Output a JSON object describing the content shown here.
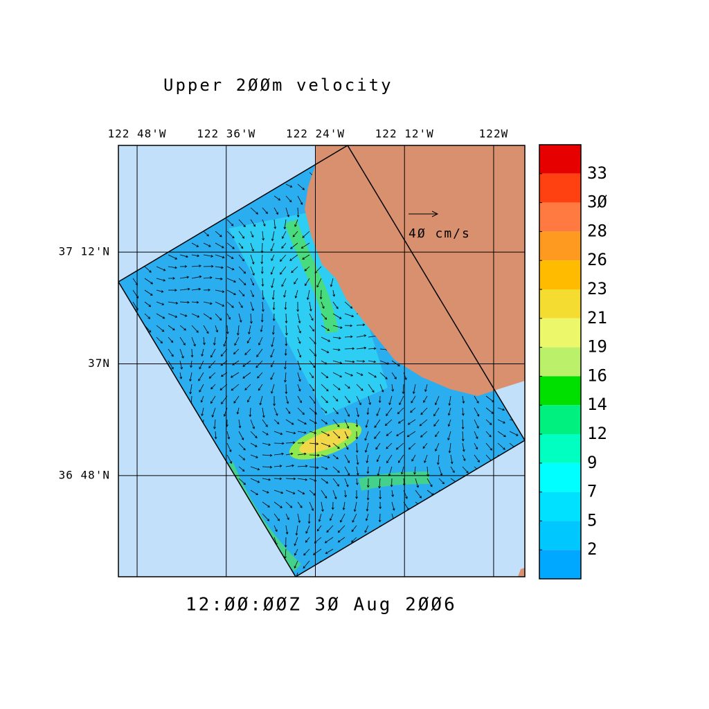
{
  "map": {
    "title": "Upper 2ØØm velocity",
    "timestamp": "12:ØØ:ØØZ  3Ø Aug 2ØØ6",
    "scale_label": "4Ø cm/s",
    "lon_range": [
      -122.842,
      -121.93
    ],
    "lat_range": [
      36.619,
      37.391
    ],
    "lon_ticks": [
      {
        "value": -122.8,
        "label": "122 48'W"
      },
      {
        "value": -122.6,
        "label": "122 36'W"
      },
      {
        "value": -122.4,
        "label": "122 24'W"
      },
      {
        "value": -122.2,
        "label": "122 12'W"
      },
      {
        "value": -122.0,
        "label": "122W"
      }
    ],
    "lat_ticks": [
      {
        "value": 37.2,
        "label": "37 12'N"
      },
      {
        "value": 37.0,
        "label": "37N"
      },
      {
        "value": 36.8,
        "label": "36 48'N"
      }
    ],
    "colorbar": {
      "levels": [
        33,
        {
          "value": 30,
          "label": "3Ø"
        },
        28,
        26,
        23,
        21,
        19,
        16,
        14,
        12,
        9,
        7,
        5,
        2
      ],
      "colors": [
        "#e60000",
        "#ff4010",
        "#ff7a40",
        "#ff9a20",
        "#ffbb00",
        "#f5dc30",
        "#ecf76a",
        "#baf06a",
        "#00e000",
        "#00f080",
        "#00ffc0",
        "#00ffff",
        "#00e0ff",
        "#00c8ff",
        "#00a8ff"
      ]
    }
  }
}
